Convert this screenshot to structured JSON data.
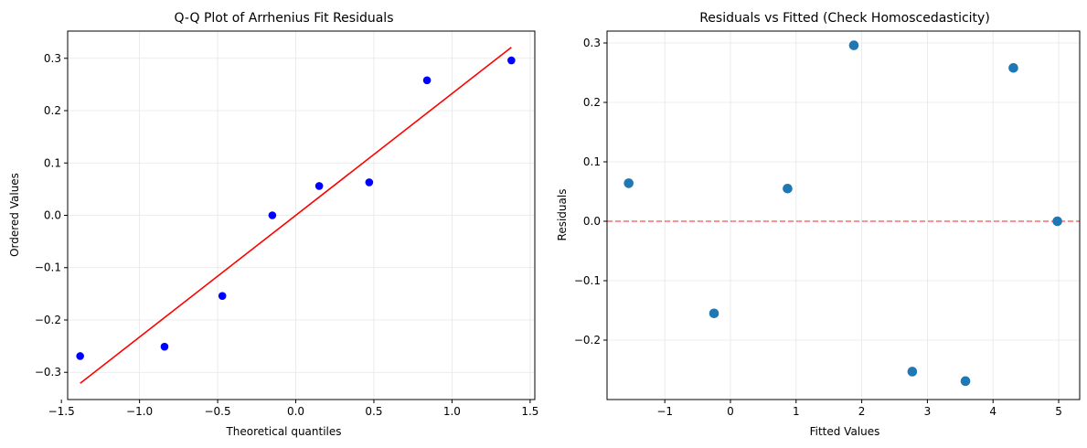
{
  "chart_data": [
    {
      "type": "scatter",
      "title": "Q-Q Plot of Arrhenius Fit Residuals",
      "xlabel": "Theoretical quantiles",
      "ylabel": "Ordered Values",
      "xlim": [
        -1.46,
        1.53
      ],
      "ylim": [
        -0.352,
        0.352
      ],
      "xticks": [
        -1.5,
        -1.0,
        -0.5,
        0.0,
        0.5,
        1.0,
        1.5
      ],
      "xtick_labels": [
        "−1.5",
        "−1.0",
        "−0.5",
        "0.0",
        "0.5",
        "1.0",
        "1.5"
      ],
      "yticks": [
        -0.3,
        -0.2,
        -0.1,
        0.0,
        0.1,
        0.2,
        0.3
      ],
      "ytick_labels": [
        "−0.3",
        "−0.2",
        "−0.1",
        "0.0",
        "0.1",
        "0.2",
        "0.3"
      ],
      "grid": true,
      "points": {
        "color": "#0000ff",
        "x": [
          -1.38,
          -0.84,
          -0.47,
          -0.15,
          0.15,
          0.47,
          0.84,
          1.38
        ],
        "y": [
          -0.269,
          -0.251,
          -0.154,
          0.0,
          0.056,
          0.063,
          0.258,
          0.296
        ]
      },
      "fit_line": {
        "color": "#ff0000",
        "x": [
          -1.38,
          1.38
        ],
        "y": [
          -0.321,
          0.321
        ]
      }
    },
    {
      "type": "scatter",
      "title": "Residuals vs Fitted (Check Homoscedasticity)",
      "xlabel": "Fitted Values",
      "ylabel": "Residuals",
      "xlim": [
        -1.88,
        5.32
      ],
      "ylim": [
        -0.3,
        0.32
      ],
      "xticks": [
        -1,
        0,
        1,
        2,
        3,
        4,
        5
      ],
      "xtick_labels": [
        "−1",
        "0",
        "1",
        "2",
        "3",
        "4",
        "5"
      ],
      "yticks": [
        -0.2,
        -0.1,
        0.0,
        0.1,
        0.2,
        0.3
      ],
      "ytick_labels": [
        "−0.2",
        "−0.1",
        "0.0",
        "0.1",
        "0.2",
        "0.3"
      ],
      "grid": true,
      "points": {
        "color": "#1f77b4",
        "x": [
          -1.55,
          -0.25,
          0.87,
          1.88,
          2.77,
          3.58,
          4.31,
          4.98
        ],
        "y": [
          0.064,
          -0.155,
          0.055,
          0.296,
          -0.253,
          -0.269,
          0.258,
          0.0
        ]
      },
      "ref_line": {
        "color": "#ff0000",
        "y": 0.0
      }
    }
  ]
}
